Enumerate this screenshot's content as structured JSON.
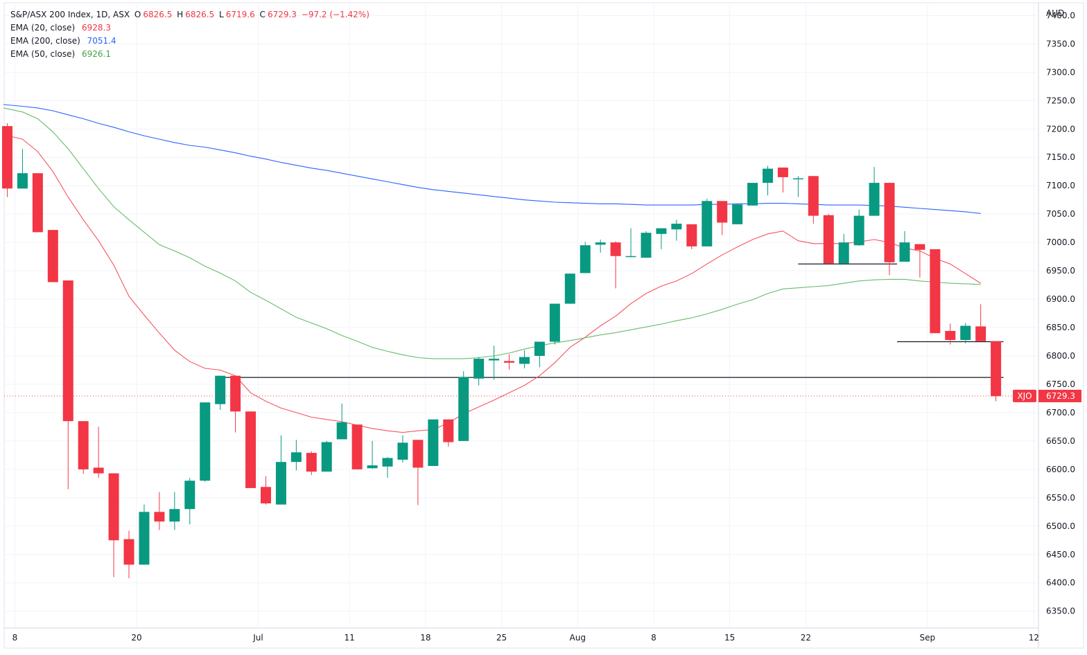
{
  "chart_data": {
    "type": "candlestick",
    "symbol_title": "S&P/ASX 200 Index, 1D, ASX",
    "ohlc_readout": {
      "O": "6826.5",
      "H": "6826.5",
      "L": "6719.6",
      "C": "6729.3",
      "change": "−97.2 (−1.42%)"
    },
    "currency_label": "AUD",
    "y_ticks": [
      "7400.0",
      "7350.0",
      "7300.0",
      "7250.0",
      "7200.0",
      "7150.0",
      "7100.0",
      "7050.0",
      "7000.0",
      "6950.0",
      "6900.0",
      "6850.0",
      "6800.0",
      "6750.0",
      "6700.0",
      "6650.0",
      "6600.0",
      "6550.0",
      "6500.0",
      "6450.0",
      "6400.0",
      "6350.0"
    ],
    "x_ticks": [
      {
        "label": "8",
        "session": 0.5
      },
      {
        "label": "20",
        "session": 8.5
      },
      {
        "label": "Jul",
        "session": 16.5
      },
      {
        "label": "11",
        "session": 22.5
      },
      {
        "label": "18",
        "session": 27.5
      },
      {
        "label": "25",
        "session": 32.5
      },
      {
        "label": "Aug",
        "session": 37.5
      },
      {
        "label": "8",
        "session": 42.5
      },
      {
        "label": "15",
        "session": 47.5
      },
      {
        "label": "22",
        "session": 52.5
      },
      {
        "label": "Sep",
        "session": 60.5
      },
      {
        "label": "12",
        "session": 67.5
      }
    ],
    "y_range": [
      6335,
      7420
    ],
    "session_range": [
      -0.25,
      69.5
    ],
    "candles": [
      [
        7205,
        7210,
        7080,
        7095
      ],
      [
        7095,
        7165,
        7095,
        7122
      ],
      [
        7122,
        7122,
        7018,
        7018
      ],
      [
        7022,
        7022,
        6930,
        6930
      ],
      [
        6933,
        6933,
        6565,
        6685
      ],
      [
        6685,
        6685,
        6592,
        6600
      ],
      [
        6603,
        6675,
        6585,
        6593
      ],
      [
        6593,
        6593,
        6410,
        6475
      ],
      [
        6477,
        6492,
        6408,
        6432
      ],
      [
        6432,
        6538,
        6432,
        6525
      ],
      [
        6525,
        6560,
        6493,
        6508
      ],
      [
        6508,
        6560,
        6493,
        6530
      ],
      [
        6530,
        6585,
        6503,
        6580
      ],
      [
        6580,
        6718,
        6578,
        6718
      ],
      [
        6715,
        6765,
        6705,
        6765
      ],
      [
        6765,
        6765,
        6665,
        6702
      ],
      [
        6702,
        6702,
        6567,
        6567
      ],
      [
        6569,
        6588,
        6538,
        6540
      ],
      [
        6538,
        6660,
        6538,
        6613
      ],
      [
        6613,
        6652,
        6598,
        6630
      ],
      [
        6629,
        6632,
        6590,
        6596
      ],
      [
        6596,
        6650,
        6596,
        6648
      ],
      [
        6653,
        6716,
        6653,
        6683
      ],
      [
        6679,
        6679,
        6600,
        6600
      ],
      [
        6602,
        6650,
        6601,
        6607
      ],
      [
        6605,
        6622,
        6585,
        6620
      ],
      [
        6617,
        6660,
        6612,
        6647
      ],
      [
        6652,
        6652,
        6537,
        6603
      ],
      [
        6606,
        6687,
        6606,
        6688
      ],
      [
        6688,
        6688,
        6640,
        6648
      ],
      [
        6650,
        6773,
        6650,
        6763
      ],
      [
        6760,
        6798,
        6748,
        6795
      ],
      [
        6792,
        6818,
        6758,
        6795
      ],
      [
        6791,
        6803,
        6776,
        6788
      ],
      [
        6786,
        6810,
        6778,
        6798
      ],
      [
        6800,
        6822,
        6780,
        6825
      ],
      [
        6825,
        6892,
        6820,
        6892
      ],
      [
        6892,
        6945,
        6892,
        6945
      ],
      [
        6946,
        7001,
        6946,
        6995
      ],
      [
        6996,
        7005,
        6982,
        7000
      ],
      [
        7000,
        7002,
        6919,
        6976
      ],
      [
        6976,
        7025,
        6974,
        6976
      ],
      [
        6973,
        7020,
        6973,
        7017
      ],
      [
        7015,
        7023,
        6988,
        7025
      ],
      [
        7023,
        7040,
        7003,
        7033
      ],
      [
        7032,
        7032,
        6988,
        6993
      ],
      [
        6993,
        7077,
        6993,
        7073
      ],
      [
        7073,
        7073,
        7013,
        7035
      ],
      [
        7032,
        7068,
        7032,
        7067
      ],
      [
        7065,
        7103,
        7065,
        7105
      ],
      [
        7105,
        7135,
        7083,
        7130
      ],
      [
        7132,
        7132,
        7088,
        7115
      ],
      [
        7113,
        7117,
        7080,
        7113
      ],
      [
        7117,
        7117,
        7033,
        7047
      ],
      [
        7048,
        7050,
        6963,
        6963
      ],
      [
        6963,
        7015,
        6963,
        7000
      ],
      [
        6995,
        7058,
        6994,
        7047
      ],
      [
        7047,
        7133,
        7047,
        7105
      ],
      [
        7105,
        7105,
        6942,
        6965
      ],
      [
        6966,
        7020,
        6966,
        7000
      ],
      [
        6997,
        6997,
        6938,
        6987
      ],
      [
        6988,
        6988,
        6840,
        6840
      ],
      [
        6844,
        6857,
        6820,
        6828
      ],
      [
        6828,
        6858,
        6822,
        6853
      ],
      [
        6852,
        6891,
        6826,
        6826
      ],
      [
        6826,
        6826,
        6720,
        6729
      ]
    ],
    "ema_series": [
      {
        "name": "EMA (20, close)",
        "value_label": "6928.3",
        "color": "#f7525f",
        "points": [
          [
            -0.25,
            7190
          ],
          [
            1,
            7182
          ],
          [
            2,
            7160
          ],
          [
            3,
            7125
          ],
          [
            4,
            7080
          ],
          [
            5,
            7040
          ],
          [
            6,
            7003
          ],
          [
            7,
            6960
          ],
          [
            8,
            6905
          ],
          [
            9,
            6872
          ],
          [
            10,
            6840
          ],
          [
            11,
            6810
          ],
          [
            12,
            6790
          ],
          [
            13,
            6778
          ],
          [
            14,
            6775
          ],
          [
            15,
            6765
          ],
          [
            16,
            6735
          ],
          [
            17,
            6720
          ],
          [
            18,
            6708
          ],
          [
            19,
            6700
          ],
          [
            20,
            6692
          ],
          [
            21,
            6688
          ],
          [
            22,
            6684
          ],
          [
            23,
            6678
          ],
          [
            24,
            6672
          ],
          [
            25,
            6668
          ],
          [
            26,
            6665
          ],
          [
            27,
            6668
          ],
          [
            28,
            6670
          ],
          [
            29,
            6682
          ],
          [
            30,
            6698
          ],
          [
            31,
            6710
          ],
          [
            32,
            6722
          ],
          [
            33,
            6735
          ],
          [
            34,
            6748
          ],
          [
            35,
            6765
          ],
          [
            36,
            6788
          ],
          [
            37,
            6815
          ],
          [
            38,
            6833
          ],
          [
            39,
            6853
          ],
          [
            40,
            6870
          ],
          [
            41,
            6892
          ],
          [
            42,
            6910
          ],
          [
            43,
            6923
          ],
          [
            44,
            6932
          ],
          [
            45,
            6945
          ],
          [
            46,
            6962
          ],
          [
            47,
            6978
          ],
          [
            48,
            6992
          ],
          [
            49,
            7005
          ],
          [
            50,
            7015
          ],
          [
            51,
            7020
          ],
          [
            52,
            7003
          ],
          [
            53,
            6998
          ],
          [
            54,
            6998
          ],
          [
            55,
            6998
          ],
          [
            56,
            7001
          ],
          [
            57,
            7005
          ],
          [
            58,
            7000
          ],
          [
            59,
            6990
          ],
          [
            60,
            6985
          ],
          [
            61,
            6972
          ],
          [
            62,
            6962
          ],
          [
            63,
            6945
          ],
          [
            64,
            6928
          ]
        ]
      },
      {
        "name": "EMA (200, close)",
        "value_label": "7051.4",
        "color": "#2962ff",
        "points": [
          [
            -0.25,
            7243
          ],
          [
            1,
            7240
          ],
          [
            2,
            7237
          ],
          [
            3,
            7232
          ],
          [
            4,
            7225
          ],
          [
            5,
            7218
          ],
          [
            6,
            7210
          ],
          [
            7,
            7203
          ],
          [
            8,
            7195
          ],
          [
            9,
            7188
          ],
          [
            10,
            7182
          ],
          [
            11,
            7176
          ],
          [
            12,
            7171
          ],
          [
            13,
            7168
          ],
          [
            14,
            7163
          ],
          [
            15,
            7158
          ],
          [
            16,
            7152
          ],
          [
            17,
            7147
          ],
          [
            18,
            7141
          ],
          [
            19,
            7136
          ],
          [
            20,
            7131
          ],
          [
            21,
            7127
          ],
          [
            22,
            7122
          ],
          [
            23,
            7117
          ],
          [
            24,
            7112
          ],
          [
            25,
            7107
          ],
          [
            26,
            7102
          ],
          [
            27,
            7097
          ],
          [
            28,
            7093
          ],
          [
            29,
            7090
          ],
          [
            30,
            7087
          ],
          [
            31,
            7084
          ],
          [
            32,
            7081
          ],
          [
            33,
            7078
          ],
          [
            34,
            7075
          ],
          [
            35,
            7073
          ],
          [
            36,
            7071
          ],
          [
            37,
            7070
          ],
          [
            38,
            7069
          ],
          [
            39,
            7068
          ],
          [
            40,
            7068
          ],
          [
            41,
            7067
          ],
          [
            42,
            7066
          ],
          [
            43,
            7066
          ],
          [
            44,
            7066
          ],
          [
            45,
            7066
          ],
          [
            46,
            7067
          ],
          [
            47,
            7067
          ],
          [
            48,
            7068
          ],
          [
            49,
            7068
          ],
          [
            50,
            7069
          ],
          [
            51,
            7069
          ],
          [
            52,
            7068
          ],
          [
            53,
            7067
          ],
          [
            54,
            7066
          ],
          [
            55,
            7066
          ],
          [
            56,
            7066
          ],
          [
            57,
            7065
          ],
          [
            58,
            7064
          ],
          [
            59,
            7062
          ],
          [
            60,
            7060
          ],
          [
            61,
            7058
          ],
          [
            62,
            7056
          ],
          [
            63,
            7054
          ],
          [
            64,
            7051
          ]
        ]
      },
      {
        "name": "EMA (50, close)",
        "value_label": "6926.1",
        "color": "#66bb6a",
        "points": [
          [
            -0.25,
            7237
          ],
          [
            1,
            7230
          ],
          [
            2,
            7218
          ],
          [
            3,
            7195
          ],
          [
            4,
            7165
          ],
          [
            5,
            7130
          ],
          [
            6,
            7095
          ],
          [
            7,
            7063
          ],
          [
            8,
            7040
          ],
          [
            9,
            7018
          ],
          [
            10,
            6996
          ],
          [
            11,
            6985
          ],
          [
            12,
            6973
          ],
          [
            13,
            6958
          ],
          [
            14,
            6946
          ],
          [
            15,
            6932
          ],
          [
            16,
            6912
          ],
          [
            17,
            6898
          ],
          [
            18,
            6883
          ],
          [
            19,
            6868
          ],
          [
            20,
            6858
          ],
          [
            21,
            6848
          ],
          [
            22,
            6836
          ],
          [
            23,
            6826
          ],
          [
            24,
            6815
          ],
          [
            25,
            6808
          ],
          [
            26,
            6802
          ],
          [
            27,
            6797
          ],
          [
            28,
            6795
          ],
          [
            29,
            6795
          ],
          [
            30,
            6795
          ],
          [
            31,
            6797
          ],
          [
            32,
            6800
          ],
          [
            33,
            6805
          ],
          [
            34,
            6812
          ],
          [
            35,
            6818
          ],
          [
            36,
            6823
          ],
          [
            37,
            6827
          ],
          [
            38,
            6832
          ],
          [
            39,
            6837
          ],
          [
            40,
            6841
          ],
          [
            41,
            6846
          ],
          [
            42,
            6851
          ],
          [
            43,
            6856
          ],
          [
            44,
            6862
          ],
          [
            45,
            6867
          ],
          [
            46,
            6874
          ],
          [
            47,
            6882
          ],
          [
            48,
            6891
          ],
          [
            49,
            6899
          ],
          [
            50,
            6910
          ],
          [
            51,
            6918
          ],
          [
            52,
            6920
          ],
          [
            53,
            6922
          ],
          [
            54,
            6924
          ],
          [
            55,
            6928
          ],
          [
            56,
            6932
          ],
          [
            57,
            6934
          ],
          [
            58,
            6935
          ],
          [
            59,
            6935
          ],
          [
            60,
            6932
          ],
          [
            61,
            6930
          ],
          [
            62,
            6928
          ],
          [
            63,
            6927
          ],
          [
            64,
            6926
          ]
        ]
      }
    ],
    "horizontal_lines": [
      {
        "y": 6762,
        "x_from": 14,
        "x_to": 65.5
      },
      {
        "y": 6962,
        "x_from": 52,
        "x_to": 58.5
      },
      {
        "y": 6825,
        "x_from": 58.5,
        "x_to": 65.5
      }
    ],
    "last_price": {
      "symbol": "XJO",
      "value": "6729.3",
      "y": 6729.3
    },
    "bull_color": "#089981",
    "bear_color": "#f23645",
    "grid": true
  }
}
